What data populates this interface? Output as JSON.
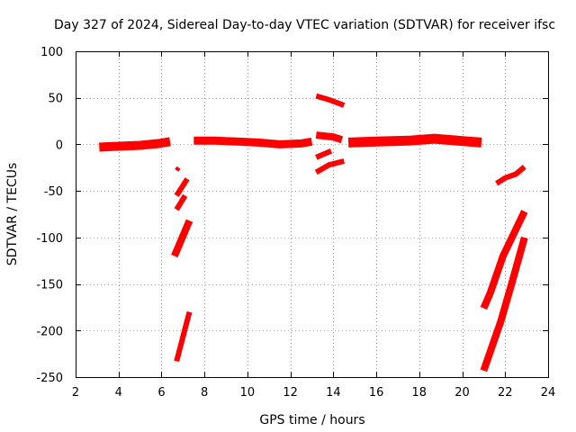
{
  "chart_data": {
    "type": "scatter",
    "title": "Day 327 of 2024, Sidereal Day-to-day VTEC variation (SDTVAR) for receiver ifsc",
    "xlabel": "GPS time / hours",
    "ylabel": "SDTVAR / TECUs",
    "xlim": [
      2,
      24
    ],
    "ylim": [
      -250,
      100
    ],
    "x_ticks": [
      2,
      4,
      6,
      8,
      10,
      12,
      14,
      16,
      18,
      20,
      22,
      24
    ],
    "y_ticks": [
      100,
      50,
      0,
      -50,
      -100,
      -150,
      -200,
      -250
    ],
    "grid": true,
    "series_color": "#ff0000",
    "segments": [
      {
        "x": [
          3.1,
          4.0,
          5.0,
          5.9,
          6.4
        ],
        "y": [
          -3,
          -2,
          -1,
          1,
          3
        ],
        "width": 10
      },
      {
        "x": [
          7.5,
          8.5,
          9.5,
          10.5,
          11.5,
          12.5,
          13.0
        ],
        "y": [
          4,
          4,
          3,
          2,
          0,
          1,
          3
        ],
        "width": 9
      },
      {
        "x": [
          13.2,
          14.0,
          14.4
        ],
        "y": [
          10,
          8,
          5
        ],
        "width": 8
      },
      {
        "x": [
          14.7,
          16.0,
          17.5,
          18.7,
          19.8,
          20.9
        ],
        "y": [
          2,
          3,
          4,
          6,
          4,
          2
        ],
        "width": 11
      },
      {
        "x": [
          13.2,
          13.8,
          14.5
        ],
        "y": [
          52,
          48,
          42
        ],
        "width": 6
      },
      {
        "x": [
          13.2,
          13.9
        ],
        "y": [
          -14,
          -7
        ],
        "width": 6
      },
      {
        "x": [
          13.2,
          13.8,
          14.5
        ],
        "y": [
          -30,
          -22,
          -18
        ],
        "width": 6
      },
      {
        "x": [
          6.7,
          6.8
        ],
        "y": [
          -28,
          -25
        ],
        "width": 5
      },
      {
        "x": [
          6.7,
          7.2
        ],
        "y": [
          -55,
          -37
        ],
        "width": 6
      },
      {
        "x": [
          6.7,
          7.1
        ],
        "y": [
          -70,
          -55
        ],
        "width": 6
      },
      {
        "x": [
          6.6,
          7.3
        ],
        "y": [
          -120,
          -82
        ],
        "width": 8
      },
      {
        "x": [
          6.7,
          7.3
        ],
        "y": [
          -233,
          -180
        ],
        "width": 6
      },
      {
        "x": [
          21.0,
          21.3,
          21.9,
          22.9
        ],
        "y": [
          -176,
          -160,
          -120,
          -72
        ],
        "width": 8
      },
      {
        "x": [
          21.0,
          21.8,
          22.3,
          22.9
        ],
        "y": [
          -243,
          -190,
          -150,
          -100
        ],
        "width": 8
      },
      {
        "x": [
          21.6,
          22.0,
          22.5,
          22.9
        ],
        "y": [
          -42,
          -36,
          -32,
          -24
        ],
        "width": 6
      }
    ]
  }
}
